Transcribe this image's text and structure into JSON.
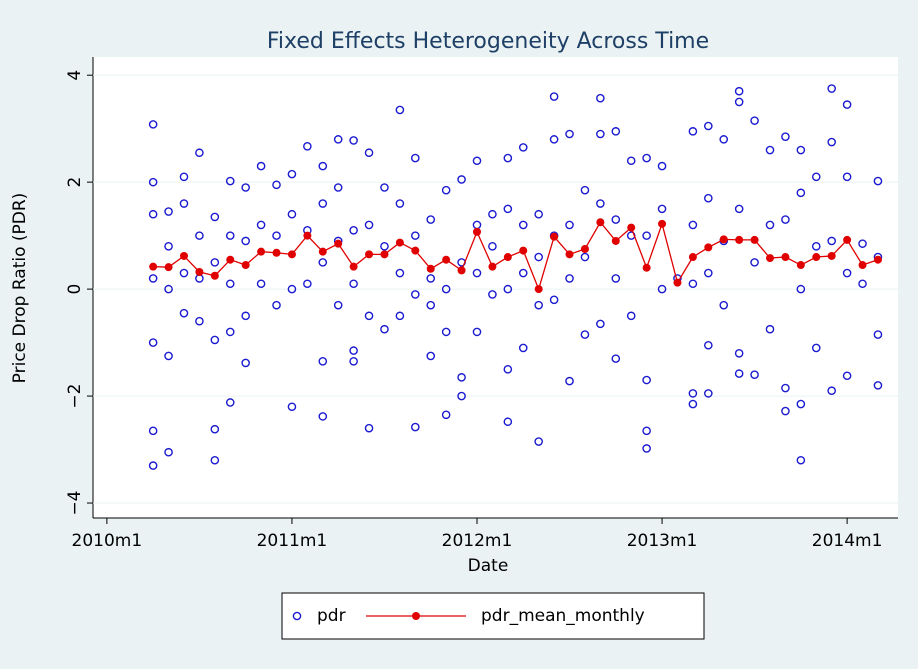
{
  "chart_data": {
    "type": "scatter",
    "title": "Fixed Effects Heterogeneity Across Time",
    "x_label": "Date",
    "y_label": "Price Drop Ratio (PDR)",
    "xlim": [
      599.1,
      651.3
    ],
    "ylim": [
      -4.28,
      4.34
    ],
    "xticks": [
      {
        "value": 600,
        "label": "2010m1"
      },
      {
        "value": 612,
        "label": "2011m1"
      },
      {
        "value": 624,
        "label": "2012m1"
      },
      {
        "value": 636,
        "label": "2013m1"
      },
      {
        "value": 648,
        "label": "2014m1"
      }
    ],
    "yticks": [
      {
        "value": -4,
        "label": "−4"
      },
      {
        "value": -2,
        "label": "−2"
      },
      0,
      2,
      4
    ],
    "grid": true,
    "legend": "bottom",
    "series": [
      {
        "name": "pdr",
        "type": "scatter",
        "color": "#1a1ad0",
        "x": [
          603,
          603,
          603,
          603,
          603,
          603,
          603,
          604,
          604,
          604,
          604,
          604,
          605,
          605,
          605,
          605,
          606,
          606,
          606,
          606,
          607,
          607,
          607,
          607,
          607,
          608,
          608,
          608,
          608,
          608,
          609,
          609,
          609,
          609,
          610,
          610,
          610,
          611,
          611,
          611,
          612,
          612,
          612,
          612,
          613,
          613,
          613,
          614,
          614,
          614,
          614,
          614,
          615,
          615,
          615,
          615,
          616,
          616,
          616,
          616,
          616,
          617,
          617,
          617,
          617,
          618,
          618,
          618,
          619,
          619,
          619,
          619,
          620,
          620,
          620,
          620,
          621,
          621,
          621,
          621,
          622,
          622,
          622,
          622,
          623,
          623,
          623,
          623,
          624,
          624,
          624,
          624,
          625,
          625,
          625,
          626,
          626,
          626,
          626,
          626,
          627,
          627,
          627,
          627,
          628,
          628,
          628,
          628,
          629,
          629,
          629,
          629,
          630,
          630,
          630,
          630,
          631,
          631,
          631,
          632,
          632,
          632,
          632,
          633,
          633,
          633,
          633,
          634,
          634,
          634,
          635,
          635,
          635,
          635,
          635,
          636,
          636,
          636,
          637,
          638,
          638,
          638,
          638,
          638,
          639,
          639,
          639,
          639,
          639,
          640,
          640,
          640,
          641,
          641,
          641,
          641,
          641,
          642,
          642,
          642,
          643,
          643,
          643,
          644,
          644,
          644,
          644,
          645,
          645,
          645,
          645,
          645,
          646,
          646,
          646,
          647,
          647,
          647,
          647,
          648,
          648,
          648,
          648,
          649,
          649,
          650,
          650,
          650,
          650
        ],
        "values": [
          3.08,
          -3.3,
          -2.65,
          2.0,
          1.4,
          -1.0,
          0.2,
          -3.05,
          1.45,
          -1.25,
          0.8,
          0.0,
          2.1,
          -0.45,
          1.6,
          0.3,
          2.55,
          -0.6,
          1.0,
          0.2,
          -3.2,
          -2.62,
          1.35,
          -0.95,
          0.5,
          -2.12,
          2.02,
          -0.8,
          1.0,
          0.1,
          -1.38,
          1.9,
          0.9,
          -0.5,
          2.3,
          1.2,
          0.1,
          1.95,
          -0.3,
          1.0,
          -2.2,
          2.15,
          1.4,
          0.0,
          2.67,
          1.1,
          0.1,
          -2.38,
          2.3,
          -1.35,
          1.6,
          0.5,
          2.8,
          1.9,
          -0.3,
          0.9,
          2.78,
          -1.35,
          -1.15,
          1.1,
          0.1,
          -2.6,
          2.55,
          -0.5,
          1.2,
          1.9,
          -0.75,
          0.8,
          3.35,
          1.6,
          -0.5,
          0.3,
          -2.58,
          2.45,
          -0.1,
          1.0,
          -1.25,
          1.3,
          0.2,
          -0.3,
          -2.35,
          1.85,
          0.0,
          -0.8,
          -2.0,
          -1.65,
          2.05,
          0.5,
          2.4,
          1.2,
          -0.8,
          0.3,
          1.4,
          -0.1,
          0.8,
          -2.48,
          2.45,
          -1.5,
          1.5,
          0.0,
          2.65,
          -1.1,
          1.2,
          0.3,
          -2.85,
          1.4,
          -0.3,
          0.6,
          3.6,
          2.8,
          -0.2,
          1.0,
          2.9,
          -1.72,
          1.2,
          0.2,
          1.85,
          -0.85,
          0.6,
          3.57,
          2.9,
          -0.65,
          1.6,
          2.95,
          -1.3,
          1.3,
          0.2,
          2.4,
          -0.5,
          1.0,
          2.45,
          -2.98,
          -2.65,
          -1.7,
          1.0,
          2.3,
          0.0,
          1.5,
          0.2,
          2.95,
          -2.15,
          -1.95,
          1.2,
          0.1,
          3.05,
          -1.95,
          -1.05,
          1.7,
          0.3,
          2.8,
          -0.3,
          0.9,
          3.7,
          3.5,
          -1.58,
          -1.2,
          1.5,
          3.15,
          -1.6,
          0.5,
          2.6,
          -0.75,
          1.2,
          2.85,
          -2.28,
          -1.85,
          1.3,
          2.6,
          -3.2,
          -2.15,
          1.8,
          0.0,
          2.1,
          -1.1,
          0.8,
          3.75,
          2.75,
          -1.9,
          0.9,
          3.45,
          2.1,
          -1.62,
          0.3,
          0.85,
          0.1,
          2.02,
          -1.8,
          -0.85,
          0.6
        ]
      },
      {
        "name": "pdr_mean_monthly",
        "type": "line",
        "color": "#e00000",
        "x": [
          603,
          604,
          605,
          606,
          607,
          608,
          609,
          610,
          611,
          612,
          613,
          614,
          615,
          616,
          617,
          618,
          619,
          620,
          621,
          622,
          623,
          624,
          625,
          626,
          627,
          628,
          629,
          630,
          631,
          632,
          633,
          634,
          635,
          636,
          637,
          638,
          639,
          640,
          641,
          642,
          643,
          644,
          645,
          646,
          647,
          648,
          649,
          650
        ],
        "values": [
          0.42,
          0.41,
          0.62,
          0.32,
          0.25,
          0.55,
          0.45,
          0.7,
          0.68,
          0.65,
          1.0,
          0.7,
          0.85,
          0.42,
          0.65,
          0.65,
          0.87,
          0.72,
          0.38,
          0.55,
          0.35,
          1.07,
          0.42,
          0.6,
          0.72,
          0.0,
          0.98,
          0.65,
          0.75,
          1.25,
          0.9,
          1.15,
          0.4,
          1.22,
          0.12,
          0.6,
          0.78,
          0.93,
          0.92,
          0.92,
          0.58,
          0.6,
          0.45,
          0.6,
          0.62,
          0.92,
          0.45,
          0.55
        ]
      }
    ]
  }
}
